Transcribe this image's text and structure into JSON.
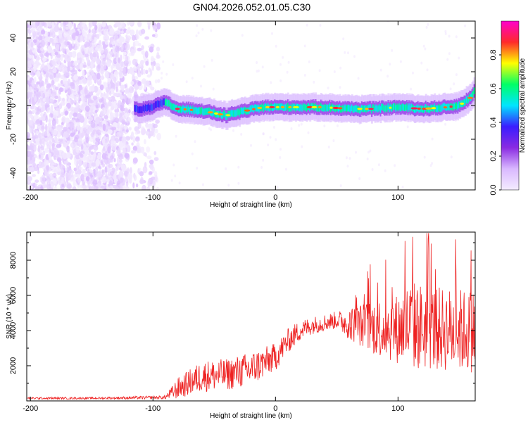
{
  "title": "GN04.2026.052.01.05.C30",
  "colors": {
    "snr_line": "#ee2222",
    "colormap": [
      "#f4ecff",
      "#d9b8ff",
      "#8a2be2",
      "#3a1dff",
      "#00e5ff",
      "#00ff66",
      "#ffff00",
      "#ff2a2a",
      "#ff00cc"
    ]
  },
  "chart_data": [
    {
      "type": "heatmap",
      "name": "spectrogram",
      "xlabel": "Height of straight line (km)",
      "ylabel": "Frequency (Hz)",
      "xlim": [
        -203,
        163
      ],
      "ylim": [
        -50,
        50
      ],
      "xticks": [
        -200,
        -100,
        0,
        100
      ],
      "yticks": [
        -40,
        -20,
        0,
        20,
        40
      ],
      "colorbar": {
        "label": "Normalized spectral amplitude",
        "range": [
          0.0,
          1.0
        ],
        "ticks": [
          0.0,
          0.2,
          0.4,
          0.6,
          0.8
        ]
      },
      "noise_region_x": [
        -203,
        -95
      ],
      "signal_track": {
        "x": [
          -115,
          -105,
          -90,
          -80,
          -60,
          -40,
          -30,
          -10,
          0,
          20,
          40,
          60,
          80,
          100,
          120,
          140,
          150,
          160,
          163
        ],
        "freq": [
          -2,
          -2,
          2,
          -2,
          -3,
          -6,
          -4,
          -1,
          -1,
          -1,
          -1,
          -2,
          -2,
          -1,
          -2,
          -1,
          0,
          5,
          10
        ]
      }
    },
    {
      "type": "line",
      "name": "snr",
      "xlabel": "Height of straight line (km)",
      "ylabel": "SNR (10 * v/v)",
      "xlim": [
        -203,
        163
      ],
      "ylim": [
        0,
        9600
      ],
      "xticks": [
        -200,
        -100,
        0,
        100
      ],
      "yticks": [
        2000,
        4000,
        6000,
        8000
      ],
      "envelope": {
        "x": [
          -203,
          -150,
          -90,
          -80,
          -60,
          -40,
          -20,
          0,
          10,
          20,
          30,
          50,
          60,
          80,
          100,
          110,
          130,
          150,
          163
        ],
        "mean": [
          150,
          150,
          200,
          700,
          1400,
          1500,
          1800,
          2500,
          3400,
          4000,
          4300,
          4600,
          4400,
          4200,
          4100,
          4300,
          4100,
          4000,
          4000
        ],
        "spread": [
          60,
          60,
          100,
          600,
          900,
          900,
          1000,
          800,
          700,
          600,
          500,
          500,
          900,
          1600,
          2000,
          2600,
          2400,
          2400,
          2400
        ]
      }
    }
  ]
}
